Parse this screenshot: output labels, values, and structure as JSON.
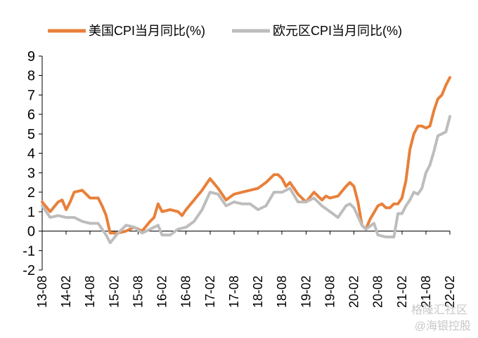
{
  "watermark": {
    "line1": "格隆汇社区",
    "line2": "@海银控股"
  },
  "chart_data": {
    "type": "line",
    "title": "",
    "xlabel": "",
    "ylabel": "",
    "ylim": [
      -2,
      9
    ],
    "yticks": [
      -2,
      -1,
      0,
      1,
      2,
      3,
      4,
      5,
      6,
      7,
      8,
      9
    ],
    "x_tick_labels": [
      "13-08",
      "14-02",
      "14-08",
      "15-02",
      "15-08",
      "16-02",
      "16-08",
      "17-02",
      "17-08",
      "18-02",
      "18-08",
      "19-02",
      "19-08",
      "20-02",
      "20-08",
      "21-02",
      "21-08",
      "22-02"
    ],
    "x_start": "2013-08",
    "x_end": "2022-02",
    "grid": false,
    "legend": "top",
    "series": [
      {
        "name": "美国CPI当月同比(%)",
        "color": "#E8803A",
        "points": [
          [
            "2013-08",
            1.5
          ],
          [
            "2013-10",
            1.0
          ],
          [
            "2013-12",
            1.5
          ],
          [
            "2014-01",
            1.6
          ],
          [
            "2014-02",
            1.1
          ],
          [
            "2014-03",
            1.5
          ],
          [
            "2014-04",
            2.0
          ],
          [
            "2014-06",
            2.1
          ],
          [
            "2014-08",
            1.7
          ],
          [
            "2014-10",
            1.7
          ],
          [
            "2014-11",
            1.3
          ],
          [
            "2014-12",
            0.8
          ],
          [
            "2015-01",
            -0.1
          ],
          [
            "2015-03",
            -0.1
          ],
          [
            "2015-05",
            0.0
          ],
          [
            "2015-07",
            0.2
          ],
          [
            "2015-09",
            0.0
          ],
          [
            "2015-11",
            0.5
          ],
          [
            "2015-12",
            0.7
          ],
          [
            "2016-01",
            1.4
          ],
          [
            "2016-02",
            1.0
          ],
          [
            "2016-04",
            1.1
          ],
          [
            "2016-06",
            1.0
          ],
          [
            "2016-07",
            0.8
          ],
          [
            "2016-08",
            1.1
          ],
          [
            "2016-10",
            1.6
          ],
          [
            "2016-12",
            2.1
          ],
          [
            "2017-02",
            2.7
          ],
          [
            "2017-04",
            2.2
          ],
          [
            "2017-06",
            1.6
          ],
          [
            "2017-08",
            1.9
          ],
          [
            "2017-10",
            2.0
          ],
          [
            "2017-12",
            2.1
          ],
          [
            "2018-02",
            2.2
          ],
          [
            "2018-04",
            2.5
          ],
          [
            "2018-06",
            2.9
          ],
          [
            "2018-07",
            2.9
          ],
          [
            "2018-08",
            2.7
          ],
          [
            "2018-09",
            2.3
          ],
          [
            "2018-10",
            2.5
          ],
          [
            "2018-12",
            1.9
          ],
          [
            "2019-02",
            1.5
          ],
          [
            "2019-04",
            2.0
          ],
          [
            "2019-06",
            1.6
          ],
          [
            "2019-07",
            1.8
          ],
          [
            "2019-08",
            1.7
          ],
          [
            "2019-10",
            1.8
          ],
          [
            "2019-12",
            2.3
          ],
          [
            "2020-01",
            2.5
          ],
          [
            "2020-02",
            2.3
          ],
          [
            "2020-03",
            1.5
          ],
          [
            "2020-04",
            0.3
          ],
          [
            "2020-05",
            0.1
          ],
          [
            "2020-06",
            0.6
          ],
          [
            "2020-08",
            1.3
          ],
          [
            "2020-09",
            1.4
          ],
          [
            "2020-10",
            1.2
          ],
          [
            "2020-11",
            1.2
          ],
          [
            "2020-12",
            1.4
          ],
          [
            "2021-01",
            1.4
          ],
          [
            "2021-02",
            1.7
          ],
          [
            "2021-03",
            2.6
          ],
          [
            "2021-04",
            4.2
          ],
          [
            "2021-05",
            5.0
          ],
          [
            "2021-06",
            5.4
          ],
          [
            "2021-07",
            5.4
          ],
          [
            "2021-08",
            5.3
          ],
          [
            "2021-09",
            5.4
          ],
          [
            "2021-10",
            6.2
          ],
          [
            "2021-11",
            6.8
          ],
          [
            "2021-12",
            7.0
          ],
          [
            "2022-01",
            7.5
          ],
          [
            "2022-02",
            7.9
          ]
        ]
      },
      {
        "name": "欧元区CPI当月同比(%)",
        "color": "#BDBDBD",
        "points": [
          [
            "2013-08",
            1.3
          ],
          [
            "2013-10",
            0.7
          ],
          [
            "2013-12",
            0.8
          ],
          [
            "2014-02",
            0.7
          ],
          [
            "2014-04",
            0.7
          ],
          [
            "2014-06",
            0.5
          ],
          [
            "2014-08",
            0.4
          ],
          [
            "2014-10",
            0.4
          ],
          [
            "2014-12",
            -0.2
          ],
          [
            "2015-01",
            -0.6
          ],
          [
            "2015-03",
            -0.1
          ],
          [
            "2015-05",
            0.3
          ],
          [
            "2015-07",
            0.2
          ],
          [
            "2015-09",
            -0.1
          ],
          [
            "2015-11",
            0.1
          ],
          [
            "2016-01",
            0.3
          ],
          [
            "2016-02",
            -0.2
          ],
          [
            "2016-04",
            -0.2
          ],
          [
            "2016-06",
            0.1
          ],
          [
            "2016-08",
            0.2
          ],
          [
            "2016-10",
            0.5
          ],
          [
            "2016-12",
            1.1
          ],
          [
            "2017-02",
            2.0
          ],
          [
            "2017-04",
            1.9
          ],
          [
            "2017-06",
            1.3
          ],
          [
            "2017-08",
            1.5
          ],
          [
            "2017-10",
            1.4
          ],
          [
            "2017-12",
            1.4
          ],
          [
            "2018-02",
            1.1
          ],
          [
            "2018-04",
            1.3
          ],
          [
            "2018-06",
            2.0
          ],
          [
            "2018-08",
            2.0
          ],
          [
            "2018-10",
            2.2
          ],
          [
            "2018-12",
            1.5
          ],
          [
            "2019-02",
            1.5
          ],
          [
            "2019-04",
            1.7
          ],
          [
            "2019-06",
            1.3
          ],
          [
            "2019-08",
            1.0
          ],
          [
            "2019-10",
            0.7
          ],
          [
            "2019-12",
            1.3
          ],
          [
            "2020-01",
            1.4
          ],
          [
            "2020-02",
            1.2
          ],
          [
            "2020-04",
            0.3
          ],
          [
            "2020-05",
            0.1
          ],
          [
            "2020-07",
            0.4
          ],
          [
            "2020-08",
            -0.2
          ],
          [
            "2020-10",
            -0.3
          ],
          [
            "2020-12",
            -0.3
          ],
          [
            "2021-01",
            0.9
          ],
          [
            "2021-02",
            0.9
          ],
          [
            "2021-03",
            1.3
          ],
          [
            "2021-04",
            1.6
          ],
          [
            "2021-05",
            2.0
          ],
          [
            "2021-06",
            1.9
          ],
          [
            "2021-07",
            2.2
          ],
          [
            "2021-08",
            3.0
          ],
          [
            "2021-09",
            3.4
          ],
          [
            "2021-10",
            4.1
          ],
          [
            "2021-11",
            4.9
          ],
          [
            "2021-12",
            5.0
          ],
          [
            "2022-01",
            5.1
          ],
          [
            "2022-02",
            5.9
          ]
        ]
      }
    ]
  }
}
